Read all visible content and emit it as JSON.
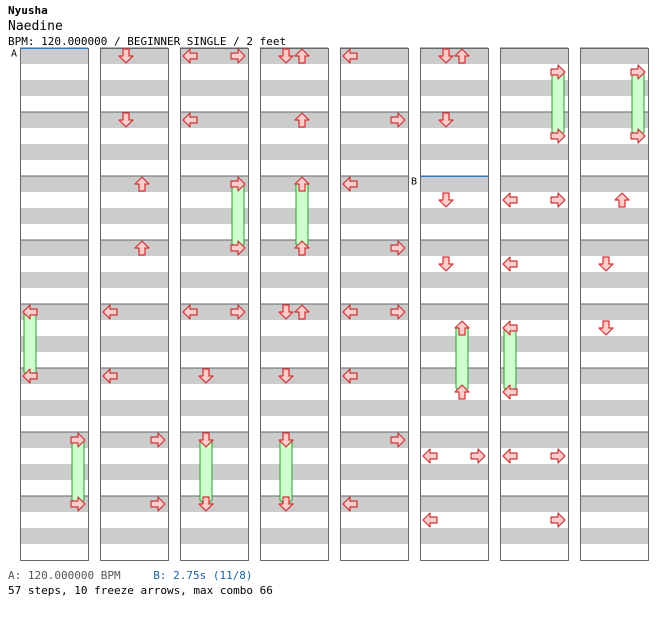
{
  "song": {
    "artist": "Nyusha",
    "title": "Naedine",
    "bpm_line": "BPM: 120.000000 / BEGINNER SINGLE / 2 feet"
  },
  "chart_data": {
    "type": "step-chart",
    "num_columns": 8,
    "measures_per_column": 8,
    "rows_per_measure": 4,
    "column_glyphs": [
      "←",
      "↓",
      "↑",
      "→"
    ],
    "markers": [
      {
        "label": "A",
        "column": 0,
        "measure": 0
      },
      {
        "label": "B",
        "column": 5,
        "measure": 2
      }
    ],
    "steps": [
      {
        "c": 0,
        "m": 4,
        "b": 0,
        "l": [
          0
        ]
      },
      {
        "c": 0,
        "m": 5,
        "b": 0,
        "l": [
          0
        ]
      },
      {
        "c": 0,
        "m": 6,
        "b": 0,
        "l": [
          3
        ]
      },
      {
        "c": 0,
        "m": 7,
        "b": 0,
        "l": [
          3
        ]
      },
      {
        "c": 1,
        "m": 0,
        "b": 0,
        "l": [
          1
        ]
      },
      {
        "c": 1,
        "m": 1,
        "b": 0,
        "l": [
          1
        ]
      },
      {
        "c": 1,
        "m": 2,
        "b": 0,
        "l": [
          2
        ]
      },
      {
        "c": 1,
        "m": 3,
        "b": 0,
        "l": [
          2
        ]
      },
      {
        "c": 1,
        "m": 4,
        "b": 0,
        "l": [
          0
        ]
      },
      {
        "c": 1,
        "m": 5,
        "b": 0,
        "l": [
          0
        ]
      },
      {
        "c": 1,
        "m": 6,
        "b": 0,
        "l": [
          3
        ]
      },
      {
        "c": 1,
        "m": 7,
        "b": 0,
        "l": [
          3
        ]
      },
      {
        "c": 2,
        "m": 0,
        "b": 0,
        "l": [
          0,
          3
        ]
      },
      {
        "c": 2,
        "m": 1,
        "b": 0,
        "l": [
          0
        ]
      },
      {
        "c": 2,
        "m": 2,
        "b": 0,
        "l": [
          3
        ]
      },
      {
        "c": 2,
        "m": 3,
        "b": 0,
        "l": [
          3
        ]
      },
      {
        "c": 2,
        "m": 4,
        "b": 0,
        "l": [
          0,
          3
        ]
      },
      {
        "c": 2,
        "m": 5,
        "b": 0,
        "l": [
          1
        ]
      },
      {
        "c": 2,
        "m": 6,
        "b": 0,
        "l": [
          1
        ]
      },
      {
        "c": 2,
        "m": 7,
        "b": 0,
        "l": [
          1
        ]
      },
      {
        "c": 3,
        "m": 0,
        "b": 0,
        "l": [
          1,
          2
        ]
      },
      {
        "c": 3,
        "m": 1,
        "b": 0,
        "l": [
          2
        ]
      },
      {
        "c": 3,
        "m": 2,
        "b": 0,
        "l": [
          2
        ]
      },
      {
        "c": 3,
        "m": 3,
        "b": 0,
        "l": [
          2
        ]
      },
      {
        "c": 3,
        "m": 4,
        "b": 0,
        "l": [
          1,
          2
        ]
      },
      {
        "c": 3,
        "m": 5,
        "b": 0,
        "l": [
          1
        ]
      },
      {
        "c": 3,
        "m": 6,
        "b": 0,
        "l": [
          1
        ]
      },
      {
        "c": 3,
        "m": 7,
        "b": 0,
        "l": [
          1
        ]
      },
      {
        "c": 4,
        "m": 0,
        "b": 0,
        "l": [
          0
        ]
      },
      {
        "c": 4,
        "m": 1,
        "b": 0,
        "l": [
          3
        ]
      },
      {
        "c": 4,
        "m": 2,
        "b": 0,
        "l": [
          0
        ]
      },
      {
        "c": 4,
        "m": 3,
        "b": 0,
        "l": [
          3
        ]
      },
      {
        "c": 4,
        "m": 4,
        "b": 0,
        "l": [
          0,
          3
        ]
      },
      {
        "c": 4,
        "m": 5,
        "b": 0,
        "l": [
          0
        ]
      },
      {
        "c": 4,
        "m": 6,
        "b": 0,
        "l": [
          3
        ]
      },
      {
        "c": 4,
        "m": 7,
        "b": 0,
        "l": [
          0
        ]
      },
      {
        "c": 5,
        "m": 0,
        "b": 0,
        "l": [
          1,
          2
        ]
      },
      {
        "c": 5,
        "m": 1,
        "b": 0,
        "l": [
          1
        ]
      },
      {
        "c": 5,
        "m": 2,
        "b": 1,
        "l": [
          1
        ]
      },
      {
        "c": 5,
        "m": 3,
        "b": 1,
        "l": [
          1
        ]
      },
      {
        "c": 5,
        "m": 4,
        "b": 1,
        "l": [
          2
        ]
      },
      {
        "c": 5,
        "m": 5,
        "b": 1,
        "l": [
          2
        ]
      },
      {
        "c": 5,
        "m": 6,
        "b": 1,
        "l": [
          0,
          3
        ]
      },
      {
        "c": 5,
        "m": 7,
        "b": 1,
        "l": [
          0
        ]
      },
      {
        "c": 6,
        "m": 0,
        "b": 1,
        "l": [
          3
        ]
      },
      {
        "c": 6,
        "m": 1,
        "b": 1,
        "l": [
          3
        ]
      },
      {
        "c": 6,
        "m": 2,
        "b": 1,
        "l": [
          0,
          3
        ]
      },
      {
        "c": 6,
        "m": 3,
        "b": 1,
        "l": [
          0
        ]
      },
      {
        "c": 6,
        "m": 4,
        "b": 1,
        "l": [
          0
        ]
      },
      {
        "c": 6,
        "m": 5,
        "b": 1,
        "l": [
          0
        ]
      },
      {
        "c": 6,
        "m": 6,
        "b": 1,
        "l": [
          0,
          3
        ]
      },
      {
        "c": 6,
        "m": 7,
        "b": 1,
        "l": [
          3
        ]
      },
      {
        "c": 7,
        "m": 0,
        "b": 1,
        "l": [
          3
        ]
      },
      {
        "c": 7,
        "m": 1,
        "b": 1,
        "l": [
          3
        ]
      },
      {
        "c": 7,
        "m": 2,
        "b": 1,
        "l": [
          2
        ]
      },
      {
        "c": 7,
        "m": 3,
        "b": 1,
        "l": [
          1
        ]
      },
      {
        "c": 7,
        "m": 4,
        "b": 1,
        "l": [
          1
        ]
      }
    ],
    "freezes": [
      {
        "c": 0,
        "lane": 0,
        "m0": 4,
        "b0": 0,
        "m1": 5,
        "b1": 0
      },
      {
        "c": 0,
        "lane": 3,
        "m0": 6,
        "b0": 0,
        "m1": 7,
        "b1": 0
      },
      {
        "c": 2,
        "lane": 3,
        "m0": 2,
        "b0": 0,
        "m1": 3,
        "b1": 0
      },
      {
        "c": 2,
        "lane": 1,
        "m0": 6,
        "b0": 0,
        "m1": 7,
        "b1": 0
      },
      {
        "c": 3,
        "lane": 2,
        "m0": 2,
        "b0": 0,
        "m1": 3,
        "b1": 0
      },
      {
        "c": 3,
        "lane": 1,
        "m0": 6,
        "b0": 0,
        "m1": 7,
        "b1": 0
      },
      {
        "c": 5,
        "lane": 2,
        "m0": 4,
        "b0": 1,
        "m1": 5,
        "b1": 1
      },
      {
        "c": 6,
        "lane": 3,
        "m0": 0,
        "b0": 1,
        "m1": 1,
        "b1": 1
      },
      {
        "c": 6,
        "lane": 0,
        "m0": 4,
        "b0": 1,
        "m1": 5,
        "b1": 1
      },
      {
        "c": 7,
        "lane": 3,
        "m0": 0,
        "b0": 1,
        "m1": 1,
        "b1": 1
      }
    ]
  },
  "footer": {
    "bpm_a": "A: 120.000000 BPM",
    "bpm_b": "B: 2.75s (11/8)",
    "summary": "57 steps, 10 freeze arrows, max combo 66"
  },
  "colors": {
    "stripe": "#cccccc",
    "grid": "#666666",
    "arrow_fill": "#ffcccc",
    "arrow_stroke": "#cc3333",
    "freeze_fill": "#ccffcc",
    "freeze_stroke": "#339933",
    "marker_line": "#3377cc"
  }
}
